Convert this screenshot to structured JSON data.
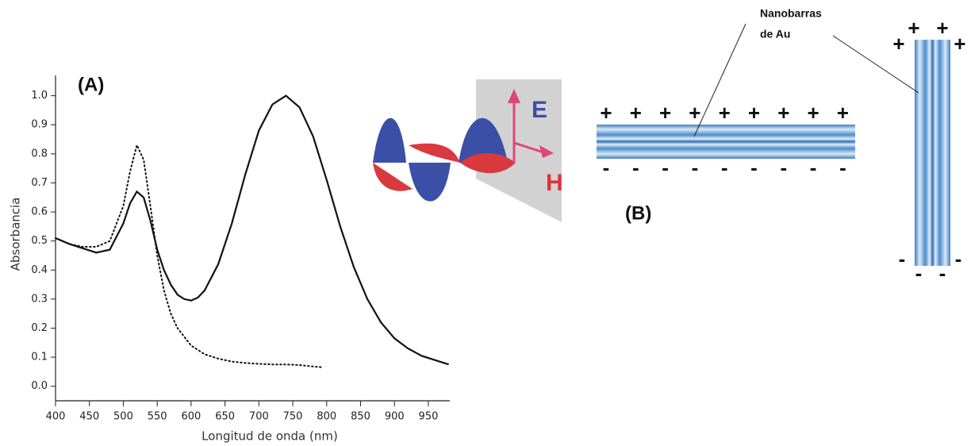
{
  "chart_data": {
    "type": "line",
    "annotation": "(A)",
    "x_label": "Longitud de onda (nm)",
    "y_label": "Absorbancia",
    "xlim": [
      400,
      980
    ],
    "ylim": [
      -0.05,
      1.07
    ],
    "xticks": [
      400,
      450,
      500,
      550,
      600,
      650,
      700,
      750,
      800,
      850,
      900,
      950
    ],
    "yticks": [
      {
        "value": 0,
        "label": "0.0"
      },
      0.1,
      0.2,
      0.3,
      0.4,
      0.5,
      0.6,
      0.7,
      0.8,
      0.9,
      {
        "value": 1,
        "label": "1.0"
      }
    ],
    "series": [
      {
        "color": "#111111",
        "dash": "solid",
        "x": [
          400,
          420,
          440,
          460,
          480,
          500,
          510,
          520,
          530,
          540,
          550,
          560,
          570,
          580,
          590,
          600,
          610,
          620,
          640,
          660,
          680,
          700,
          720,
          740,
          760,
          780,
          800,
          820,
          840,
          860,
          880,
          900,
          920,
          940,
          960,
          980
        ],
        "values": [
          0.51,
          0.49,
          0.475,
          0.46,
          0.47,
          0.56,
          0.63,
          0.67,
          0.65,
          0.57,
          0.47,
          0.4,
          0.35,
          0.315,
          0.3,
          0.295,
          0.305,
          0.33,
          0.42,
          0.56,
          0.73,
          0.88,
          0.97,
          1.0,
          0.96,
          0.86,
          0.71,
          0.55,
          0.41,
          0.3,
          0.22,
          0.165,
          0.13,
          0.105,
          0.09,
          0.075
        ]
      },
      {
        "color": "#111111",
        "dash": "dotted",
        "x": [
          400,
          420,
          440,
          460,
          480,
          500,
          510,
          520,
          530,
          540,
          550,
          560,
          570,
          580,
          600,
          620,
          640,
          660,
          680,
          700,
          720,
          740,
          760,
          780,
          795
        ],
        "values": [
          0.51,
          0.49,
          0.48,
          0.48,
          0.5,
          0.62,
          0.74,
          0.83,
          0.78,
          0.62,
          0.45,
          0.33,
          0.25,
          0.2,
          0.14,
          0.11,
          0.095,
          0.085,
          0.08,
          0.077,
          0.075,
          0.075,
          0.073,
          0.068,
          0.065
        ]
      }
    ]
  },
  "diagram": {
    "label": "(B)",
    "caption": [
      "Nanobarras",
      "de Au"
    ],
    "field_labels": [
      "E",
      "H"
    ],
    "horizontal_rod": {
      "top": [
        "+",
        "+",
        "+",
        "+",
        "+",
        "+",
        "+",
        "+",
        "+"
      ],
      "bottom": [
        "-",
        "-",
        "-",
        "-",
        "-",
        "-",
        "-",
        "-",
        "-"
      ]
    },
    "vertical_rod": {
      "top": [
        "+",
        "+",
        "+",
        "+"
      ],
      "bottom": [
        "-",
        "-",
        "-",
        "-"
      ]
    }
  }
}
